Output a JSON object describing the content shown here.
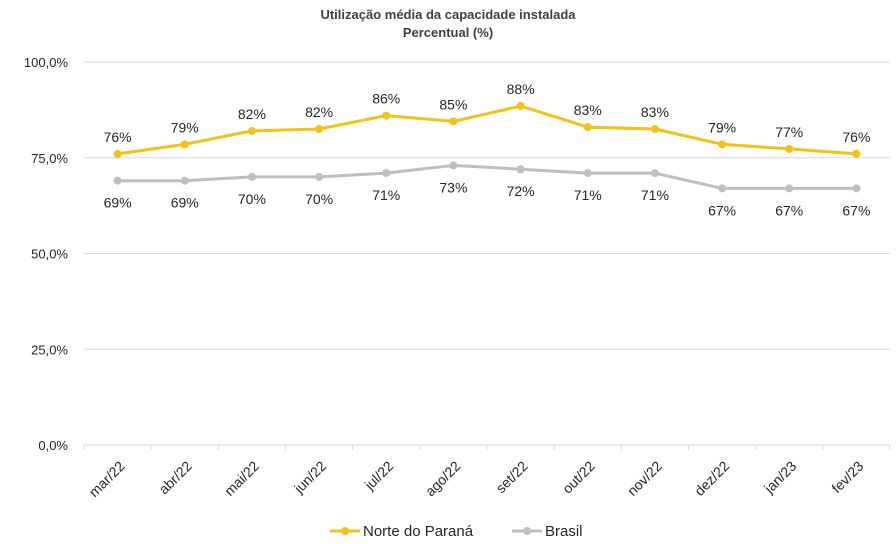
{
  "chart_data": {
    "type": "line",
    "title": "Utilização média da capacidade instalada",
    "subtitle": "Percentual (%)",
    "xlabel": "",
    "ylabel": "",
    "categories": [
      "mar/22",
      "abr/22",
      "mai/22",
      "jun/22",
      "jul/22",
      "ago/22",
      "set/22",
      "out/22",
      "nov/22",
      "dez/22",
      "jan/23",
      "fev/23"
    ],
    "ylim": [
      0,
      100
    ],
    "yticks": [
      0,
      25,
      50,
      75,
      100
    ],
    "ytick_labels": [
      "0,0%",
      "25,0%",
      "50,0%",
      "75,0%",
      "100,0%"
    ],
    "grid": true,
    "legend_position": "bottom",
    "series": [
      {
        "name": "Norte do Paraná",
        "color": "#F2C316",
        "values": [
          76,
          78.5,
          82,
          82.5,
          86,
          84.5,
          88.5,
          83,
          82.5,
          78.5,
          77.3,
          76
        ],
        "labels": [
          "76%",
          "79%",
          "82%",
          "82%",
          "86%",
          "85%",
          "88%",
          "83%",
          "83%",
          "79%",
          "77%",
          "76%"
        ],
        "label_position": "above"
      },
      {
        "name": "Brasil",
        "color": "#BFBFBF",
        "values": [
          69,
          69,
          70,
          70,
          71,
          73,
          72,
          71,
          71,
          67,
          67,
          67
        ],
        "labels": [
          "69%",
          "69%",
          "70%",
          "70%",
          "71%",
          "73%",
          "72%",
          "71%",
          "71%",
          "67%",
          "67%",
          "67%"
        ],
        "label_position": "below"
      }
    ]
  }
}
